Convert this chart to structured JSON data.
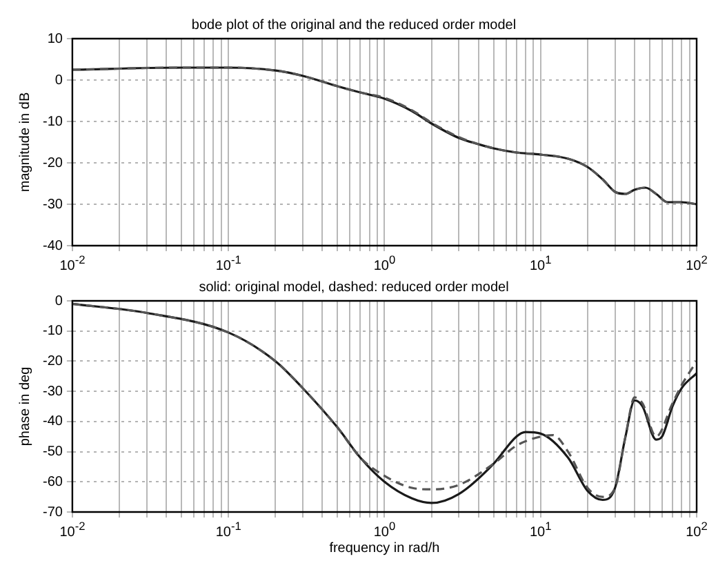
{
  "chart_data": [
    {
      "type": "line",
      "title": "bode plot of the original and the reduced order model",
      "ylabel": "magnitude in dB",
      "log": "x",
      "grid": true,
      "legend": false,
      "marker": "none",
      "xlim": [
        0.01,
        100
      ],
      "ylim": [
        -40,
        10
      ],
      "yticks": [
        -40,
        -30,
        -20,
        -10,
        0,
        10
      ],
      "xticks": [
        {
          "value": 0.01,
          "label": "10$^{-2}$"
        },
        {
          "value": 0.02,
          "label": null
        },
        {
          "value": 0.03,
          "label": null
        },
        {
          "value": 0.04,
          "label": null
        },
        {
          "value": 0.05,
          "label": null
        },
        {
          "value": 0.06,
          "label": null
        },
        {
          "value": 0.07,
          "label": null
        },
        {
          "value": 0.08,
          "label": null
        },
        {
          "value": 0.09,
          "label": null
        },
        {
          "value": 0.1,
          "label": "10$^{-1}$"
        },
        {
          "value": 0.2,
          "label": null
        },
        {
          "value": 0.3,
          "label": null
        },
        {
          "value": 0.4,
          "label": null
        },
        {
          "value": 0.5,
          "label": null
        },
        {
          "value": 0.6,
          "label": null
        },
        {
          "value": 0.7,
          "label": null
        },
        {
          "value": 0.8,
          "label": null
        },
        {
          "value": 0.9,
          "label": null
        },
        {
          "value": 1,
          "label": "10$^{0}$"
        },
        {
          "value": 2,
          "label": null
        },
        {
          "value": 3,
          "label": null
        },
        {
          "value": 4,
          "label": null
        },
        {
          "value": 5,
          "label": null
        },
        {
          "value": 6,
          "label": null
        },
        {
          "value": 7,
          "label": null
        },
        {
          "value": 8,
          "label": null
        },
        {
          "value": 9,
          "label": null
        },
        {
          "value": 10,
          "label": "10$^{1}$"
        },
        {
          "value": 20,
          "label": null
        },
        {
          "value": 30,
          "label": null
        },
        {
          "value": 40,
          "label": null
        },
        {
          "value": 50,
          "label": null
        },
        {
          "value": 60,
          "label": null
        },
        {
          "value": 70,
          "label": null
        },
        {
          "value": 80,
          "label": null
        },
        {
          "value": 90,
          "label": null
        },
        {
          "value": 100,
          "label": "10$^{2}$"
        }
      ],
      "x": [
        0.01,
        0.05,
        0.1,
        0.2,
        0.3,
        0.5,
        0.7,
        1,
        1.5,
        2,
        3,
        4,
        5,
        7,
        10,
        15,
        20,
        25,
        30,
        35,
        40,
        47,
        55,
        65,
        80,
        100
      ],
      "series": [
        {
          "color": "#1a1a1a",
          "line_style": "solid",
          "values": [
            2.5,
            3,
            3,
            2.3,
            1,
            -1.5,
            -3,
            -4.5,
            -7.5,
            -10.5,
            -14,
            -15.5,
            -16.5,
            -17.5,
            -18,
            -19,
            -21,
            -24,
            -27,
            -27.5,
            -26.5,
            -26,
            -27.5,
            -29.5,
            -29.5,
            -30
          ]
        },
        {
          "color": "#555555",
          "line_style": "dashed",
          "values": [
            2.5,
            3,
            3,
            2.3,
            1,
            -1.5,
            -3,
            -4.3,
            -7.3,
            -10.3,
            -13.8,
            -15.5,
            -16.5,
            -17.5,
            -18,
            -19,
            -21,
            -24,
            -27,
            -27.5,
            -26.5,
            -26,
            -27.5,
            -29.5,
            -29.5,
            -30
          ]
        }
      ]
    },
    {
      "type": "line",
      "title": "solid: original model, dashed: reduced order model",
      "xlabel": "frequency in rad/h",
      "ylabel": "phase in deg",
      "log": "x",
      "grid": true,
      "legend": false,
      "marker": "none",
      "xlim": [
        0.01,
        100
      ],
      "ylim": [
        -70,
        0
      ],
      "yticks": [
        -70,
        -60,
        -50,
        -40,
        -30,
        -20,
        -10,
        0
      ],
      "xticks": [
        {
          "value": 0.01,
          "label": "10$^{-2}$"
        },
        {
          "value": 0.02,
          "label": null
        },
        {
          "value": 0.03,
          "label": null
        },
        {
          "value": 0.04,
          "label": null
        },
        {
          "value": 0.05,
          "label": null
        },
        {
          "value": 0.06,
          "label": null
        },
        {
          "value": 0.07,
          "label": null
        },
        {
          "value": 0.08,
          "label": null
        },
        {
          "value": 0.09,
          "label": null
        },
        {
          "value": 0.1,
          "label": "10$^{-1}$"
        },
        {
          "value": 0.2,
          "label": null
        },
        {
          "value": 0.3,
          "label": null
        },
        {
          "value": 0.4,
          "label": null
        },
        {
          "value": 0.5,
          "label": null
        },
        {
          "value": 0.6,
          "label": null
        },
        {
          "value": 0.7,
          "label": null
        },
        {
          "value": 0.8,
          "label": null
        },
        {
          "value": 0.9,
          "label": null
        },
        {
          "value": 1,
          "label": "10$^{0}$"
        },
        {
          "value": 2,
          "label": null
        },
        {
          "value": 3,
          "label": null
        },
        {
          "value": 4,
          "label": null
        },
        {
          "value": 5,
          "label": null
        },
        {
          "value": 6,
          "label": null
        },
        {
          "value": 7,
          "label": null
        },
        {
          "value": 8,
          "label": null
        },
        {
          "value": 9,
          "label": null
        },
        {
          "value": 10,
          "label": "10$^{1}$"
        },
        {
          "value": 20,
          "label": null
        },
        {
          "value": 30,
          "label": null
        },
        {
          "value": 40,
          "label": null
        },
        {
          "value": 50,
          "label": null
        },
        {
          "value": 60,
          "label": null
        },
        {
          "value": 70,
          "label": null
        },
        {
          "value": 80,
          "label": null
        },
        {
          "value": 90,
          "label": null
        },
        {
          "value": 100,
          "label": "10$^{2}$"
        }
      ],
      "series": [
        {
          "color": "#1a1a1a",
          "line_style": "solid",
          "x": [
            0.01,
            0.03,
            0.1,
            0.2,
            0.3,
            0.5,
            0.7,
            1,
            1.5,
            2,
            3,
            5,
            7,
            8,
            10,
            15,
            20,
            25,
            30,
            35,
            40,
            45,
            55,
            60,
            70,
            80,
            100
          ],
          "values": [
            -1,
            -4,
            -10.5,
            -20,
            -29,
            -42,
            -52,
            -60,
            -65.5,
            -67,
            -64,
            -54,
            -45,
            -43.5,
            -44,
            -52,
            -63,
            -66,
            -62,
            -45,
            -33,
            -35,
            -46,
            -45,
            -35,
            -29,
            -24
          ]
        },
        {
          "color": "#555555",
          "line_style": "dashed",
          "x": [
            0.01,
            0.03,
            0.1,
            0.2,
            0.3,
            0.5,
            0.7,
            1,
            1.5,
            2,
            3,
            5,
            7,
            10,
            12,
            15,
            20,
            25,
            30,
            35,
            40,
            45,
            55,
            70,
            80,
            100
          ],
          "values": [
            -1,
            -4,
            -10.5,
            -20,
            -29,
            -42,
            -52,
            -58,
            -62,
            -62.5,
            -61,
            -54,
            -48,
            -45,
            -44.5,
            -50,
            -62,
            -65,
            -62,
            -45,
            -32,
            -34,
            -45,
            -34,
            -28,
            -20
          ]
        }
      ]
    }
  ]
}
